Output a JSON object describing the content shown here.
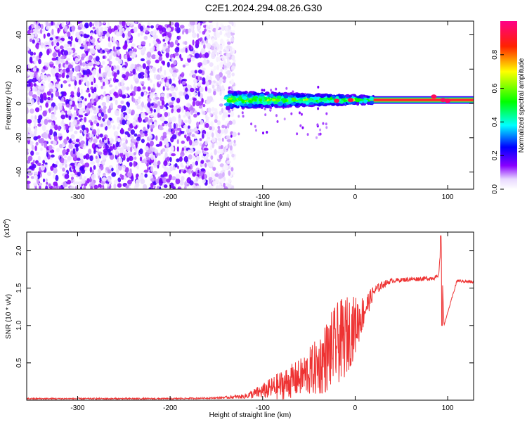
{
  "title": "C2E1.2024.294.08.26.G30",
  "chart_data": [
    {
      "type": "heatmap",
      "xlabel": "Height of straight line (km)",
      "ylabel": "Frequency (Hz)",
      "xlim": [
        -355,
        128
      ],
      "ylim": [
        -50,
        48
      ],
      "x_ticks": [
        -300,
        -200,
        -100,
        0,
        100
      ],
      "x_tick_labels": [
        "-300",
        "-200",
        "-100",
        "0",
        "100"
      ],
      "y_ticks": [
        -40,
        -20,
        0,
        20,
        40
      ],
      "y_tick_labels": [
        "-40",
        "-20",
        "0",
        "20",
        "40"
      ],
      "colorbar": {
        "label": "Normalized spectral amplitude",
        "range": [
          0,
          1
        ],
        "ticks": [
          0.0,
          0.2,
          0.4,
          0.6,
          0.8
        ],
        "tick_labels": [
          "0.0",
          "0.2",
          "0.4",
          "0.6",
          "0.8"
        ],
        "colors": [
          "#ffffff",
          "#8800ff",
          "#0000ff",
          "#00ffff",
          "#00ff00",
          "#ffff00",
          "#ff0000",
          "#ff00aa"
        ]
      },
      "regions": [
        {
          "x_range": [
            -355,
            -140
          ],
          "freq_range": [
            -50,
            48
          ],
          "amplitude_range": [
            0.0,
            0.2
          ],
          "description_hidden": true
        },
        {
          "x_range": [
            -140,
            20
          ],
          "center_freq": 2,
          "band_halfwidth": 5,
          "amplitude_range": [
            0.2,
            0.6
          ]
        },
        {
          "x_range": [
            20,
            128
          ],
          "center_freq": 2,
          "band_halfwidth": 1.5,
          "amplitude_range": [
            0.7,
            1.0
          ]
        }
      ]
    },
    {
      "type": "line",
      "xlabel": "Height of straight line (km)",
      "ylabel": "SNR (10 * v/v)",
      "y_multiplier": "(x10",
      "y_multiplier_exp": "4",
      "y_multiplier_close": ")",
      "xlim": [
        -355,
        128
      ],
      "ylim": [
        0,
        2.25
      ],
      "x_ticks": [
        -300,
        -200,
        -100,
        0,
        100
      ],
      "x_tick_labels": [
        "-300",
        "-200",
        "-100",
        "0",
        "100"
      ],
      "y_ticks": [
        0.5,
        1.0,
        1.5,
        2.0
      ],
      "y_tick_labels": [
        "0.5",
        "1.0",
        "1.5",
        "2.0"
      ],
      "color": "#ee3333",
      "series": [
        {
          "x": [
            -355,
            -300,
            -250,
            -200,
            -150,
            -120,
            -100,
            -80,
            -60,
            -40,
            -30,
            -20,
            -10,
            0,
            10,
            20,
            30,
            40,
            60,
            80,
            90,
            93,
            96,
            110,
            128
          ],
          "values": [
            0.02,
            0.02,
            0.02,
            0.02,
            0.03,
            0.05,
            0.12,
            0.2,
            0.3,
            0.45,
            0.6,
            0.75,
            0.85,
            1.0,
            1.2,
            1.45,
            1.55,
            1.6,
            1.62,
            1.63,
            1.65,
            2.1,
            1.0,
            1.6,
            1.58
          ],
          "noise_amplitude": [
            0.01,
            0.01,
            0.01,
            0.01,
            0.01,
            0.03,
            0.1,
            0.2,
            0.25,
            0.4,
            0.5,
            0.55,
            0.55,
            0.4,
            0.2,
            0.08,
            0.05,
            0.03,
            0.03,
            0.03,
            0.03,
            0.0,
            0.0,
            0.02,
            0.02
          ]
        }
      ]
    }
  ]
}
